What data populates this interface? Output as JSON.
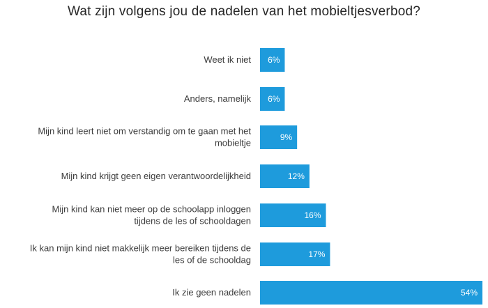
{
  "chart_data": {
    "type": "bar",
    "orientation": "horizontal",
    "title": "Wat zijn volgens jou de nadelen van het mobieltjesverbod?",
    "categories": [
      [
        "Weet ik niet"
      ],
      [
        "Anders, namelijk"
      ],
      [
        "Mijn kind leert niet om verstandig om te gaan met het",
        "mobieltje"
      ],
      [
        "Mijn kind krijgt geen eigen verantwoordelijkheid"
      ],
      [
        "Mijn kind kan niet meer op de schoolapp inloggen",
        "tijdens de les of schooldagen"
      ],
      [
        "Ik kan mijn kind niet makkelijk meer bereiken tijdens de",
        "les of de schooldag"
      ],
      [
        "Ik zie geen nadelen"
      ]
    ],
    "values": [
      6,
      6,
      9,
      12,
      16,
      17,
      54
    ],
    "value_labels": [
      "6%",
      "6%",
      "9%",
      "12%",
      "16%",
      "17%",
      "54%"
    ],
    "xlim": [
      0,
      56
    ],
    "unit": "%",
    "bar_color": "#1e9bdc",
    "grid": false,
    "legend": "none"
  }
}
